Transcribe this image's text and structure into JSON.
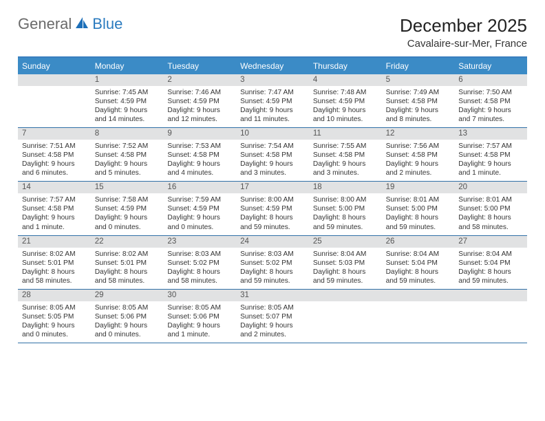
{
  "brand": {
    "general": "General",
    "blue": "Blue"
  },
  "title": "December 2025",
  "location": "Cavalaire-sur-Mer, France",
  "colors": {
    "header_bg": "#3b8bc6",
    "rule": "#2f6fa6",
    "num_bg": "#e1e2e3",
    "text": "#333333",
    "logo_gray": "#6a6a6a",
    "logo_blue": "#2b7bbf"
  },
  "daynames": [
    "Sunday",
    "Monday",
    "Tuesday",
    "Wednesday",
    "Thursday",
    "Friday",
    "Saturday"
  ],
  "weeks": [
    [
      {
        "num": "",
        "body": ""
      },
      {
        "num": "1",
        "body": "Sunrise: 7:45 AM\nSunset: 4:59 PM\nDaylight: 9 hours and 14 minutes."
      },
      {
        "num": "2",
        "body": "Sunrise: 7:46 AM\nSunset: 4:59 PM\nDaylight: 9 hours and 12 minutes."
      },
      {
        "num": "3",
        "body": "Sunrise: 7:47 AM\nSunset: 4:59 PM\nDaylight: 9 hours and 11 minutes."
      },
      {
        "num": "4",
        "body": "Sunrise: 7:48 AM\nSunset: 4:59 PM\nDaylight: 9 hours and 10 minutes."
      },
      {
        "num": "5",
        "body": "Sunrise: 7:49 AM\nSunset: 4:58 PM\nDaylight: 9 hours and 8 minutes."
      },
      {
        "num": "6",
        "body": "Sunrise: 7:50 AM\nSunset: 4:58 PM\nDaylight: 9 hours and 7 minutes."
      }
    ],
    [
      {
        "num": "7",
        "body": "Sunrise: 7:51 AM\nSunset: 4:58 PM\nDaylight: 9 hours and 6 minutes."
      },
      {
        "num": "8",
        "body": "Sunrise: 7:52 AM\nSunset: 4:58 PM\nDaylight: 9 hours and 5 minutes."
      },
      {
        "num": "9",
        "body": "Sunrise: 7:53 AM\nSunset: 4:58 PM\nDaylight: 9 hours and 4 minutes."
      },
      {
        "num": "10",
        "body": "Sunrise: 7:54 AM\nSunset: 4:58 PM\nDaylight: 9 hours and 3 minutes."
      },
      {
        "num": "11",
        "body": "Sunrise: 7:55 AM\nSunset: 4:58 PM\nDaylight: 9 hours and 3 minutes."
      },
      {
        "num": "12",
        "body": "Sunrise: 7:56 AM\nSunset: 4:58 PM\nDaylight: 9 hours and 2 minutes."
      },
      {
        "num": "13",
        "body": "Sunrise: 7:57 AM\nSunset: 4:58 PM\nDaylight: 9 hours and 1 minute."
      }
    ],
    [
      {
        "num": "14",
        "body": "Sunrise: 7:57 AM\nSunset: 4:58 PM\nDaylight: 9 hours and 1 minute."
      },
      {
        "num": "15",
        "body": "Sunrise: 7:58 AM\nSunset: 4:59 PM\nDaylight: 9 hours and 0 minutes."
      },
      {
        "num": "16",
        "body": "Sunrise: 7:59 AM\nSunset: 4:59 PM\nDaylight: 9 hours and 0 minutes."
      },
      {
        "num": "17",
        "body": "Sunrise: 8:00 AM\nSunset: 4:59 PM\nDaylight: 8 hours and 59 minutes."
      },
      {
        "num": "18",
        "body": "Sunrise: 8:00 AM\nSunset: 5:00 PM\nDaylight: 8 hours and 59 minutes."
      },
      {
        "num": "19",
        "body": "Sunrise: 8:01 AM\nSunset: 5:00 PM\nDaylight: 8 hours and 59 minutes."
      },
      {
        "num": "20",
        "body": "Sunrise: 8:01 AM\nSunset: 5:00 PM\nDaylight: 8 hours and 58 minutes."
      }
    ],
    [
      {
        "num": "21",
        "body": "Sunrise: 8:02 AM\nSunset: 5:01 PM\nDaylight: 8 hours and 58 minutes."
      },
      {
        "num": "22",
        "body": "Sunrise: 8:02 AM\nSunset: 5:01 PM\nDaylight: 8 hours and 58 minutes."
      },
      {
        "num": "23",
        "body": "Sunrise: 8:03 AM\nSunset: 5:02 PM\nDaylight: 8 hours and 58 minutes."
      },
      {
        "num": "24",
        "body": "Sunrise: 8:03 AM\nSunset: 5:02 PM\nDaylight: 8 hours and 59 minutes."
      },
      {
        "num": "25",
        "body": "Sunrise: 8:04 AM\nSunset: 5:03 PM\nDaylight: 8 hours and 59 minutes."
      },
      {
        "num": "26",
        "body": "Sunrise: 8:04 AM\nSunset: 5:04 PM\nDaylight: 8 hours and 59 minutes."
      },
      {
        "num": "27",
        "body": "Sunrise: 8:04 AM\nSunset: 5:04 PM\nDaylight: 8 hours and 59 minutes."
      }
    ],
    [
      {
        "num": "28",
        "body": "Sunrise: 8:05 AM\nSunset: 5:05 PM\nDaylight: 9 hours and 0 minutes."
      },
      {
        "num": "29",
        "body": "Sunrise: 8:05 AM\nSunset: 5:06 PM\nDaylight: 9 hours and 0 minutes."
      },
      {
        "num": "30",
        "body": "Sunrise: 8:05 AM\nSunset: 5:06 PM\nDaylight: 9 hours and 1 minute."
      },
      {
        "num": "31",
        "body": "Sunrise: 8:05 AM\nSunset: 5:07 PM\nDaylight: 9 hours and 2 minutes."
      },
      {
        "num": "",
        "body": ""
      },
      {
        "num": "",
        "body": ""
      },
      {
        "num": "",
        "body": ""
      }
    ]
  ]
}
